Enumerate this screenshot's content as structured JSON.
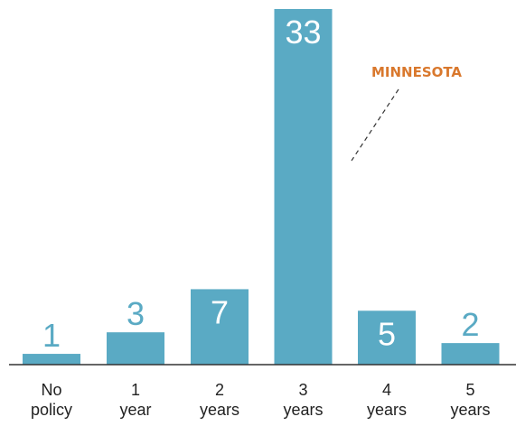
{
  "chart_data": {
    "type": "bar",
    "categories": [
      "No policy",
      "1 year",
      "2 years",
      "3 years",
      "4 years",
      "5 years"
    ],
    "values": [
      1,
      3,
      7,
      33,
      5,
      2
    ],
    "color": "#5aaac4",
    "annotation": "MINNESOTA"
  }
}
